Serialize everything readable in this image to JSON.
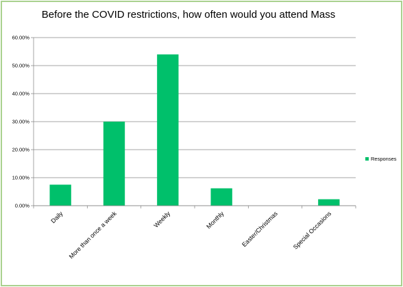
{
  "chart_data": {
    "type": "bar",
    "title": "Before the COVID restrictions, how often would you attend Mass",
    "xlabel": "",
    "ylabel": "",
    "categories": [
      "Daily",
      "More than once a week",
      "Weekly",
      "Monthly",
      "Easter/Christmas",
      "Special Occasions"
    ],
    "series": [
      {
        "name": "Responses",
        "values": [
          7.5,
          30.0,
          54.0,
          6.2,
          0.0,
          2.3
        ],
        "color": "#00c06b"
      }
    ],
    "ylim": [
      0,
      60
    ],
    "yticks": [
      0,
      10,
      20,
      30,
      40,
      50,
      60
    ],
    "ytick_labels": [
      "0.00%",
      "10.00%",
      "20.00%",
      "30.00%",
      "40.00%",
      "50.00%",
      "60.00%"
    ],
    "grid": true,
    "legend": {
      "position": "right",
      "entries": [
        "Responses"
      ]
    },
    "border_color": "#a9d18e"
  }
}
